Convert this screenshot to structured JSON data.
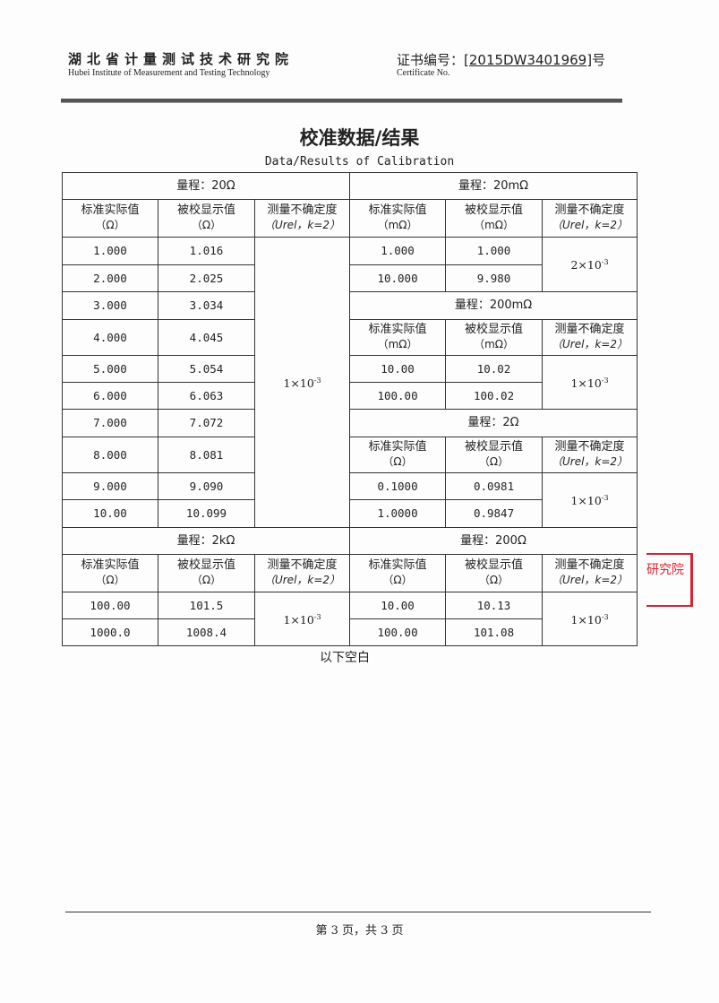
{
  "header": {
    "org_cn": "湖北省计量测试技术研究院",
    "org_en": "Hubei Institute of Measurement and Testing Technology",
    "cert_label": "证书编号：",
    "cert_no": "[2015DW3401969]",
    "cert_suffix": "号",
    "cert_en": "Certificate No."
  },
  "title": "校准数据/结果",
  "subtitle": "Data/Results of Calibration",
  "col_headers": {
    "std": "标准实际值",
    "dut": "被校显示值",
    "unc": "测量不确定度",
    "unc_sym": "（Urel，k=2）",
    "ohm": "（Ω）",
    "mohm": "（mΩ）"
  },
  "sections": {
    "r20": {
      "range": "量程：20Ω",
      "unc": "1×10",
      "exp": "-3",
      "rows": [
        [
          "1.000",
          "1.016"
        ],
        [
          "2.000",
          "2.025"
        ],
        [
          "3.000",
          "3.034"
        ],
        [
          "4.000",
          "4.045"
        ],
        [
          "5.000",
          "5.054"
        ],
        [
          "6.000",
          "6.063"
        ],
        [
          "7.000",
          "7.072"
        ],
        [
          "8.000",
          "8.081"
        ],
        [
          "9.000",
          "9.090"
        ],
        [
          "10.00",
          "10.099"
        ]
      ]
    },
    "r20m": {
      "range": "量程：20mΩ",
      "unc": "2×10",
      "exp": "-3",
      "rows": [
        [
          "1.000",
          "1.000"
        ],
        [
          "10.000",
          "9.980"
        ]
      ]
    },
    "r200m": {
      "range": "量程：200mΩ",
      "unc": "1×10",
      "exp": "-3",
      "rows": [
        [
          "10.00",
          "10.02"
        ],
        [
          "100.00",
          "100.02"
        ]
      ]
    },
    "r2": {
      "range": "量程：2Ω",
      "unc": "1×10",
      "exp": "-3",
      "rows": [
        [
          "0.1000",
          "0.0981"
        ],
        [
          "1.0000",
          "0.9847"
        ]
      ]
    },
    "r2k": {
      "range": "量程：2kΩ",
      "unc": "1×10",
      "exp": "-3",
      "rows": [
        [
          "100.00",
          "101.5"
        ],
        [
          "1000.0",
          "1008.4"
        ]
      ]
    },
    "r200": {
      "range": "量程：200Ω",
      "unc": "1×10",
      "exp": "-3",
      "rows": [
        [
          "10.00",
          "10.13"
        ],
        [
          "100.00",
          "101.08"
        ]
      ]
    }
  },
  "blank_note": "以下空白",
  "footer": "第 3 页，共 3 页",
  "stamp": {
    "text": "研究院",
    "color": "#e02030"
  }
}
